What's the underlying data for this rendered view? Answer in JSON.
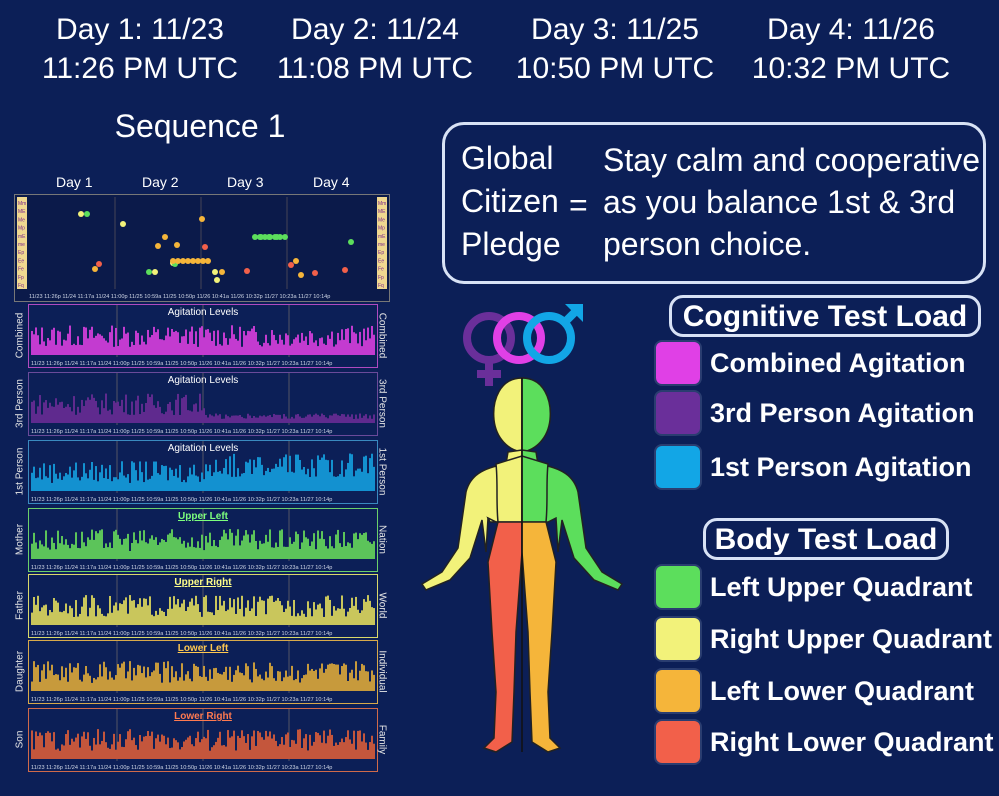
{
  "header": {
    "days": [
      {
        "date": "Day 1:  11/23",
        "time": "11:26 PM UTC"
      },
      {
        "date": "Day 2:  11/24",
        "time": "11:08 PM UTC"
      },
      {
        "date": "Day 3:  11/25",
        "time": "10:50 PM UTC"
      },
      {
        "date": "Day 4:  11/26",
        "time": "10:32 PM UTC"
      }
    ]
  },
  "sequence_title": "Sequence 1",
  "day_labels": [
    "Day 1",
    "Day 2",
    "Day 3",
    "Day 4"
  ],
  "time_ticks": "11/23 11:26p 11/24 11:17a 11/24 11:00p 11/25 10:59a 11/25 10:50p 11/26 10:41a 11/26 10:32p 11/27 10:23a 11/27 10:14p",
  "pledge": {
    "term_lines": [
      "Global",
      "Citizen",
      "Pledge"
    ],
    "equals": "=",
    "text": "Stay calm and cooperative as you balance 1st & 3rd person choice."
  },
  "cognitive": {
    "heading": "Cognitive Test Load",
    "items": [
      {
        "label": "Combined Agitation",
        "color": "#e040e6"
      },
      {
        "label": "3rd Person Agitation",
        "color": "#6a2f9a"
      },
      {
        "label": "1st Person Agitation",
        "color": "#12a6e6"
      }
    ]
  },
  "body": {
    "heading": "Body Test Load",
    "items": [
      {
        "label": "Left Upper Quadrant",
        "color": "#5cde5c"
      },
      {
        "label": "Right Upper Quadrant",
        "color": "#f2f27a"
      },
      {
        "label": "Left Lower Quadrant",
        "color": "#f5b53a"
      },
      {
        "label": "Right Lower Quadrant",
        "color": "#f2604a"
      }
    ]
  },
  "panels": [
    {
      "left": "Combined",
      "right": "Combined",
      "title": "Agitation Levels",
      "color": "#c33bd0",
      "border": "#b04ac0",
      "title_color": "#ffffff"
    },
    {
      "left": "3rd Person",
      "right": "3rd Person",
      "title": "Agitation Levels",
      "color": "#5f2a8e",
      "border": "#6a4a9a",
      "title_color": "#ffffff"
    },
    {
      "left": "1st Person",
      "right": "1st Person",
      "title": "Agitation Levels",
      "color": "#1391d0",
      "border": "#3a8ac0",
      "title_color": "#ffffff"
    },
    {
      "left": "Mother",
      "right": "Nation",
      "title": "Upper Left",
      "color": "#5cc45a",
      "border": "#6ad06a",
      "title_color": "#7dff7d"
    },
    {
      "left": "Father",
      "right": "World",
      "title": "Upper Right",
      "color": "#c9c65c",
      "border": "#d8d86a",
      "title_color": "#ffff8a"
    },
    {
      "left": "Daughter",
      "right": "Individual",
      "title": "Lower Left",
      "color": "#c79a3c",
      "border": "#d8a94a",
      "title_color": "#ffc850"
    },
    {
      "left": "Son",
      "right": "Family",
      "title": "Lower Right",
      "color": "#c4563c",
      "border": "#d06a4a",
      "title_color": "#ff7a50"
    }
  ],
  "scale_labels": [
    "Mm",
    "ME",
    "Me",
    "Mp",
    "mE",
    "me",
    "Ep",
    "Ee",
    "Fe",
    "Fp",
    "Fq"
  ]
}
